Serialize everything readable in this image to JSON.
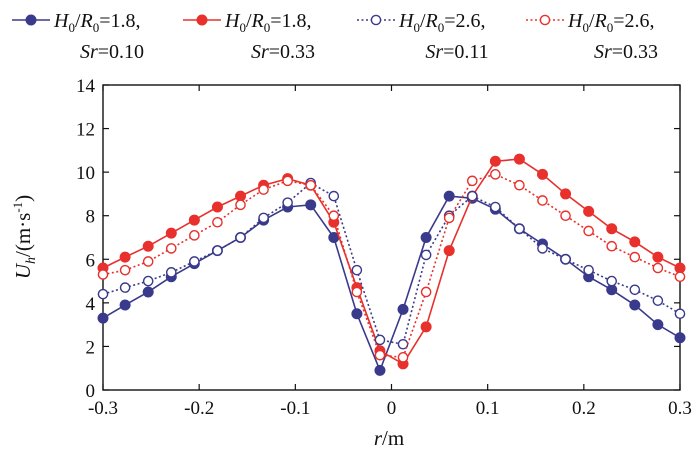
{
  "chart_data": {
    "type": "line",
    "title": "",
    "xlabel": "r/m",
    "xlabel_italic": "r",
    "xlabel_rest": "/m",
    "ylabel": "U_h/(m·s^-1)",
    "ylabel_U": "U",
    "ylabel_sub": "h",
    "ylabel_unit": "/(m·s",
    "ylabel_sup": "-1",
    "ylabel_close": ")",
    "xlim": [
      -0.3,
      0.3
    ],
    "ylim": [
      0,
      14
    ],
    "xticks": [
      -0.3,
      -0.2,
      -0.1,
      0,
      0.1,
      0.2,
      0.3
    ],
    "xtick_labels": [
      "-0.3",
      "-0.2",
      "-0.1",
      "0",
      "0.1",
      "0.2",
      "0.3"
    ],
    "yticks": [
      0,
      2,
      4,
      6,
      8,
      10,
      12,
      14
    ],
    "ytick_labels": [
      "0",
      "2",
      "4",
      "6",
      "8",
      "10",
      "12",
      "14"
    ],
    "legend_position": "top",
    "x": [
      -0.3,
      -0.277,
      -0.253,
      -0.229,
      -0.205,
      -0.181,
      -0.157,
      -0.133,
      -0.108,
      -0.084,
      -0.06,
      -0.036,
      -0.012,
      0.012,
      0.036,
      0.06,
      0.084,
      0.108,
      0.133,
      0.157,
      0.181,
      0.205,
      0.229,
      0.253,
      0.277,
      0.3
    ],
    "series": [
      {
        "name": "H0/R0=1.8, Sr=0.10",
        "label_line1": "=1.8,",
        "label_line2": "=0.10",
        "color": "#3a3a8c",
        "marker": "filled",
        "dash": "solid",
        "values": [
          3.3,
          3.9,
          4.5,
          5.2,
          5.8,
          6.4,
          7.0,
          7.8,
          8.4,
          8.5,
          7.0,
          3.5,
          0.9,
          3.7,
          7.0,
          8.9,
          8.8,
          8.3,
          7.4,
          6.7,
          6.0,
          5.2,
          4.6,
          3.9,
          3.0,
          2.4
        ]
      },
      {
        "name": "H0/R0=1.8, Sr=0.33",
        "label_line1": "=1.8,",
        "label_line2": "=0.33",
        "color": "#e8302c",
        "marker": "filled",
        "dash": "solid",
        "values": [
          5.6,
          6.1,
          6.6,
          7.2,
          7.8,
          8.4,
          8.9,
          9.4,
          9.7,
          9.4,
          7.7,
          4.7,
          1.8,
          1.2,
          2.9,
          6.4,
          8.9,
          10.5,
          10.6,
          9.9,
          9.0,
          8.2,
          7.4,
          6.8,
          6.1,
          5.6
        ]
      },
      {
        "name": "H0/R0=2.6, Sr=0.11",
        "label_line1": "=2.6,",
        "label_line2": "=0.11",
        "color": "#3a3a8c",
        "marker": "open",
        "dash": "dotted",
        "values": [
          4.4,
          4.7,
          5.0,
          5.4,
          5.9,
          6.4,
          7.0,
          7.9,
          8.6,
          9.5,
          8.9,
          5.5,
          2.3,
          2.1,
          6.2,
          8.0,
          8.9,
          8.4,
          7.4,
          6.5,
          6.0,
          5.5,
          5.0,
          4.6,
          4.1,
          3.5
        ]
      },
      {
        "name": "H0/R0=2.6, Sr=0.33",
        "label_line1": "=2.6,",
        "label_line2": "=0.33",
        "color": "#e8302c",
        "marker": "open",
        "dash": "dotted",
        "values": [
          5.3,
          5.5,
          5.9,
          6.5,
          7.1,
          7.7,
          8.5,
          9.2,
          9.6,
          9.4,
          8.0,
          4.5,
          1.6,
          1.5,
          4.5,
          7.9,
          9.6,
          9.9,
          9.4,
          8.7,
          8.0,
          7.3,
          6.6,
          6.1,
          5.6,
          5.2
        ]
      }
    ]
  }
}
